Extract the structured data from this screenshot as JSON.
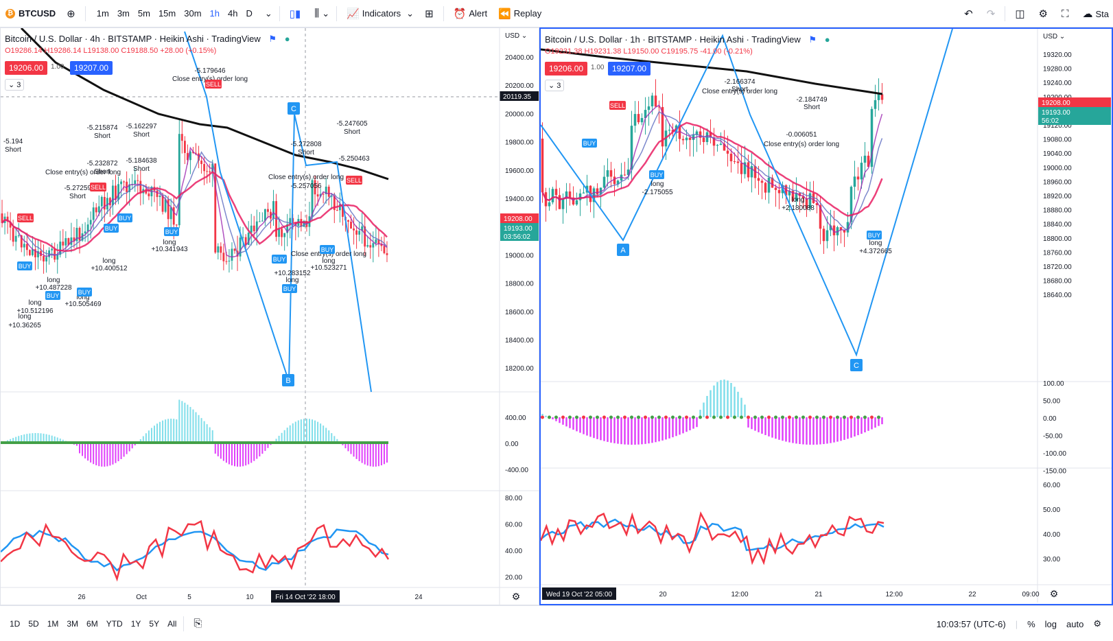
{
  "toolbar": {
    "symbol": "BTCUSD",
    "intervals": [
      "1m",
      "3m",
      "5m",
      "15m",
      "30m",
      "1h",
      "4h",
      "D"
    ],
    "active_interval": "1h",
    "indicators_label": "Indicators",
    "alert_label": "Alert",
    "replay_label": "Replay",
    "right_cut_label": "Sta"
  },
  "left_chart": {
    "title": "Bitcoin / U.S. Dollar · 4h · BITSTAMP · Heikin Ashi · TradingView",
    "ohlc": "O19286.14 H19286.14 L19138.00 C19188.50 +28.00 (+0.15%)",
    "bid": "19206.00",
    "spread": "1.00",
    "ask": "19207.00",
    "collapse_count": "3",
    "currency": "USD",
    "price_ticks": [
      "20400.00",
      "20200.00",
      "20000.00",
      "19800.00",
      "19600.00",
      "19400.00",
      "19200.00",
      "19000.00",
      "18800.00",
      "18600.00",
      "18400.00",
      "18200.00"
    ],
    "crosshair_price": "20119.35",
    "last_price_red": "19208.00",
    "last_price_green": "19193.00",
    "countdown": "03:56:02",
    "macd_ticks": [
      "400.00",
      "0.00",
      "-400.00"
    ],
    "rsi_ticks": [
      "80.00",
      "60.00",
      "40.00",
      "20.00"
    ],
    "time_ticks": [
      "26",
      "Oct",
      "5",
      "10",
      "24"
    ],
    "crosshair_time": "Fri 14 Oct '22   18:00",
    "pattern_labels": [
      "C",
      "B"
    ],
    "annotations": [
      "-5.194",
      "Short",
      "-5.215874",
      "Short",
      "-5.162297",
      "Short",
      "-5.179646",
      "Close entry(s) order long",
      "-5.232872",
      "Short",
      "-5.184638",
      "Short",
      "Close entry(s) order long",
      "-5.272597",
      "Short",
      "-5.272808",
      "Short",
      "-5.247605",
      "Short",
      "-5.250463",
      "Close entry(s) order long",
      "-5.257056",
      "Close entry(s) order long",
      "long",
      "+10.341943",
      "long",
      "+10.400512",
      "long",
      "+10.505469",
      "long",
      "+10.487228",
      "long",
      "+10.512196",
      "long",
      "+10.36265",
      "long",
      "+10.283152",
      "long",
      "+10.523271"
    ],
    "signal_labels": [
      "BUY",
      "SELL"
    ]
  },
  "right_chart": {
    "title": "Bitcoin / U.S. Dollar · 1h · BITSTAMP · Heikin Ashi · TradingView",
    "ohlc": "O19231.38 H19231.38 L19150.00 C19195.75 -41.00 (-0.21%)",
    "bid": "19206.00",
    "spread": "1.00",
    "ask": "19207.00",
    "collapse_count": "3",
    "currency": "USD",
    "price_ticks": [
      "19320.00",
      "19280.00",
      "19240.00",
      "19200.00",
      "19160.00",
      "19120.00",
      "19080.00",
      "19040.00",
      "19000.00",
      "18960.00",
      "18920.00",
      "18880.00",
      "18840.00",
      "18800.00",
      "18760.00",
      "18720.00",
      "18680.00",
      "18640.00"
    ],
    "last_price_red": "19208.00",
    "last_price_green": "19193.00",
    "countdown": "56:02",
    "macd_ticks": [
      "100.00",
      "50.00",
      "0.00",
      "-50.00",
      "-100.00",
      "-150.00"
    ],
    "rsi_ticks": [
      "60.00",
      "50.00",
      "40.00",
      "30.00"
    ],
    "time_ticks": [
      "20",
      "12:00",
      "21",
      "12:00",
      "22",
      "09:00"
    ],
    "crosshair_time": "Wed 19 Oct '22   05:00",
    "pattern_labels": [
      "A",
      "C"
    ],
    "annotations": [
      "-2.166374",
      "Short",
      "Close entry(s) order long",
      "-2.184749",
      "Short",
      "-0.006051",
      "Close entry(s) order long",
      "long",
      "-2.175055",
      "long",
      "+2.180088",
      "long",
      "+4.372665"
    ],
    "signal_labels": [
      "BUY",
      "SELL"
    ]
  },
  "bottombar": {
    "ranges": [
      "1D",
      "5D",
      "1M",
      "3M",
      "6M",
      "YTD",
      "1Y",
      "5Y",
      "All"
    ],
    "clock": "10:03:57 (UTC-6)",
    "percent": "%",
    "log": "log",
    "auto": "auto"
  },
  "colors": {
    "up": "#26a69a",
    "down": "#f23645",
    "accent": "#2962ff",
    "pattern": "#2196f3"
  }
}
